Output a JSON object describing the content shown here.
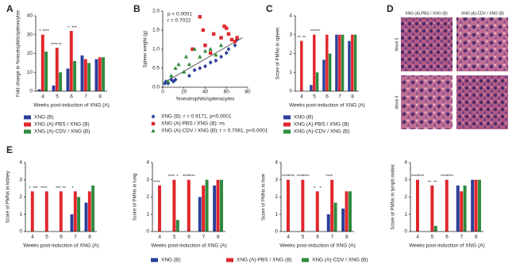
{
  "chart_data": [
    {
      "type": "bar",
      "panel_label": "A",
      "y_label": "Fold change in %neutrophils/splenocytes",
      "x_label": "Weeks post-induction of XNG (A)",
      "categories": [
        "4",
        "5",
        "6",
        "7",
        "8"
      ],
      "ylim": [
        0,
        40
      ],
      "yticks": [
        0,
        10,
        20,
        30,
        40
      ],
      "series": [
        {
          "name": "XNG (B)",
          "color": "#2b3f9c",
          "values": [
            1,
            3,
            12,
            19,
            17
          ]
        },
        {
          "name": "XNG (A)-PBS / XNG (B)",
          "color": "#e0262b",
          "values": [
            30,
            23,
            32,
            17,
            18
          ]
        },
        {
          "name": "XNG (A)-CDV / XNG (B)",
          "color": "#2e8b3e",
          "values": [
            21,
            10,
            16,
            15,
            18
          ]
        }
      ],
      "annotations": [
        {
          "at": "4",
          "text": "*"
        },
        {
          "at": "4",
          "text": "****"
        },
        {
          "at": "5",
          "text": "****"
        },
        {
          "at": "5",
          "text": "**"
        },
        {
          "at": "6",
          "text": "*"
        },
        {
          "at": "6",
          "text": "***"
        }
      ]
    },
    {
      "type": "scatter",
      "panel_label": "B",
      "y_label": "Spleen weight (g)",
      "x_label": "%neutrophils/splenocytes",
      "stats": [
        "p < 0.0001",
        "r = 0.7022"
      ],
      "xlim": [
        0,
        80
      ],
      "xticks": [
        0,
        20,
        40,
        60,
        80
      ],
      "ylim": [
        0,
        2
      ],
      "yticks": [
        {
          "value": 0,
          "label": "0.0"
        },
        {
          "value": 0.5,
          "label": "0.5"
        },
        {
          "value": 1,
          "label": "1.0"
        },
        {
          "value": 1.5,
          "label": "1.5"
        },
        {
          "value": 2,
          "label": "2.0"
        }
      ],
      "fit": {
        "x": [
          0,
          75
        ],
        "y": [
          0.1,
          1.3
        ]
      },
      "series": [
        {
          "name": "XNG (B): r = 0.9171, p<0.0001",
          "color": "#2b3f9c",
          "marker": "diamond",
          "x": [
            2,
            3,
            5,
            8,
            10,
            12,
            25,
            30,
            35,
            40,
            45,
            50,
            55,
            60,
            62,
            68,
            70
          ],
          "values": [
            0.1,
            0.15,
            0.1,
            0.2,
            0.15,
            0.2,
            0.3,
            0.45,
            0.5,
            0.55,
            0.65,
            0.7,
            0.8,
            0.9,
            1.0,
            1.1,
            1.25
          ]
        },
        {
          "name": "XNG (A)-PBS / XNG (B): ns",
          "color": "#e0262b",
          "marker": "square",
          "x": [
            28,
            35,
            38,
            40,
            45,
            48,
            55,
            58,
            60,
            62,
            65,
            68,
            70
          ],
          "values": [
            1.0,
            1.85,
            1.5,
            1.1,
            0.9,
            1.4,
            1.3,
            1.6,
            1.55,
            1.4,
            1.25,
            1.2,
            1.3
          ]
        },
        {
          "name": "XNG (A)-CDV / XNG (B): r = 0.7081, p<0.0001",
          "color": "#2e8b3e",
          "marker": "triangle",
          "x": [
            5,
            8,
            12,
            15,
            20,
            22,
            25,
            30,
            35,
            40,
            45,
            50,
            55
          ],
          "values": [
            0.15,
            0.3,
            0.5,
            0.6,
            0.4,
            0.8,
            0.6,
            1.0,
            0.8,
            0.95,
            1.0,
            0.85,
            1.1
          ]
        }
      ]
    },
    {
      "type": "bar",
      "panel_label": "C",
      "y_label": "Score of PMNs in spleen",
      "x_label": "Weeks post-induction of XNG (A)",
      "categories": [
        "4",
        "5",
        "6",
        "7",
        "8"
      ],
      "ylim": [
        0,
        4
      ],
      "yticks": [
        0,
        1,
        2,
        3,
        4
      ],
      "series": [
        {
          "name": "XNG (B)",
          "color": "#2b3f9c",
          "values": [
            0,
            0.33,
            1.67,
            3,
            2.67
          ]
        },
        {
          "name": "XNG (A)-PBS / XNG (B)",
          "color": "#e0262b",
          "values": [
            2.67,
            3,
            3,
            3,
            3
          ]
        },
        {
          "name": "XNG (A)-CDV / XNG (B)",
          "color": "#2e8b3e",
          "values": [
            0,
            1,
            2,
            3,
            3
          ]
        }
      ],
      "annotations": [
        {
          "at": "4",
          "text": "**"
        },
        {
          "at": "4",
          "text": "**"
        },
        {
          "at": "5",
          "text": "**"
        },
        {
          "at": "5",
          "text": "****"
        }
      ]
    },
    {
      "type": "bar",
      "panel_label": "E",
      "y_label": "Score of PMNs in kidney",
      "x_label": "Weeks post-induction of XNG (A)",
      "categories": [
        "4",
        "5",
        "6",
        "7",
        "8"
      ],
      "ylim": [
        0,
        4
      ],
      "yticks": [
        0,
        1,
        2,
        3,
        4
      ],
      "series": [
        {
          "color": "#2b3f9c",
          "values": [
            0,
            0,
            0,
            1,
            1.67
          ]
        },
        {
          "color": "#e0262b",
          "values": [
            2.33,
            2.33,
            2.33,
            2.33,
            2.33
          ]
        },
        {
          "color": "#2e8b3e",
          "values": [
            0,
            0,
            0,
            2,
            2.67
          ]
        }
      ],
      "annotations": [
        {
          "at": "4",
          "text": "*"
        },
        {
          "at": "4",
          "text": "***"
        },
        {
          "at": "5",
          "text": "****"
        },
        {
          "at": "6",
          "text": "***"
        },
        {
          "at": "6",
          "text": "**"
        },
        {
          "at": "7",
          "text": "*"
        }
      ]
    },
    {
      "type": "bar",
      "y_label": "Score of PMNs in lung",
      "x_label": "Weeks post-induction of XNG (A)",
      "categories": [
        "4",
        "5",
        "6",
        "7",
        "8"
      ],
      "ylim": [
        0,
        4
      ],
      "yticks": [
        0,
        1,
        2,
        3,
        4
      ],
      "series": [
        {
          "color": "#2b3f9c",
          "values": [
            0,
            0,
            0,
            2,
            2.67
          ]
        },
        {
          "color": "#e0262b",
          "values": [
            2.67,
            3,
            3,
            2.67,
            3
          ]
        },
        {
          "color": "#2e8b3e",
          "values": [
            0,
            0.67,
            0,
            3,
            3
          ]
        }
      ],
      "annotations": [
        {
          "at": "4",
          "text": "****"
        },
        {
          "at": "5",
          "text": "****"
        },
        {
          "at": "5",
          "text": "*"
        },
        {
          "at": "6",
          "text": "****"
        },
        {
          "at": "6",
          "text": "****"
        }
      ]
    },
    {
      "type": "bar",
      "y_label": "Score of PMNs in liver",
      "x_label": "Weeks post-induction of XNG (A)",
      "categories": [
        "4",
        "5",
        "6",
        "7",
        "8"
      ],
      "ylim": [
        0,
        4
      ],
      "yticks": [
        0,
        1,
        2,
        3,
        4
      ],
      "series": [
        {
          "color": "#2b3f9c",
          "values": [
            0,
            0,
            0,
            1,
            1.33
          ]
        },
        {
          "color": "#e0262b",
          "values": [
            3,
            3,
            2.33,
            3,
            2.33
          ]
        },
        {
          "color": "#2e8b3e",
          "values": [
            0,
            0,
            0,
            1.67,
            2.33
          ]
        }
      ],
      "annotations": [
        {
          "at": "4",
          "text": "****"
        },
        {
          "at": "4",
          "text": "****"
        },
        {
          "at": "5",
          "text": "****"
        },
        {
          "at": "5",
          "text": "****"
        },
        {
          "at": "6",
          "text": "*"
        },
        {
          "at": "6",
          "text": "*"
        },
        {
          "at": "7",
          "text": "****"
        }
      ]
    },
    {
      "type": "bar",
      "y_label": "Score of PMNs in lymph nodes",
      "x_label": "Weeks post-induction of XNG (A)",
      "categories": [
        "4",
        "5",
        "6",
        "7",
        "8"
      ],
      "ylim": [
        0,
        4
      ],
      "yticks": [
        0,
        1,
        2,
        3,
        4
      ],
      "series": [
        {
          "color": "#2b3f9c",
          "values": [
            0,
            0,
            0,
            2.67,
            3
          ]
        },
        {
          "color": "#e0262b",
          "values": [
            3,
            2.67,
            3,
            2.33,
            3
          ]
        },
        {
          "color": "#2e8b3e",
          "values": [
            0,
            0.33,
            0,
            2.67,
            3
          ]
        }
      ],
      "annotations": [
        {
          "at": "4",
          "text": "****"
        },
        {
          "at": "4",
          "text": "****"
        },
        {
          "at": "5",
          "text": "**"
        },
        {
          "at": "5",
          "text": "**"
        },
        {
          "at": "6",
          "text": "****"
        },
        {
          "at": "6",
          "text": "****"
        }
      ]
    }
  ],
  "shared_legend": [
    {
      "name": "XNG (B)",
      "color": "#2b3f9c"
    },
    {
      "name": "XNG (A)-PBS / XNG (B)",
      "color": "#e0262b"
    },
    {
      "name": "XNG (A)-CDV / XNG (B)",
      "color": "#2e8b3e"
    }
  ],
  "histology": {
    "panel_label": "D",
    "columns": [
      "XNG (A)-PBS / XNG (B)",
      "XNG (A)-CDV / XNG (B)"
    ],
    "rows": [
      "Week 5",
      "Week 6"
    ]
  }
}
